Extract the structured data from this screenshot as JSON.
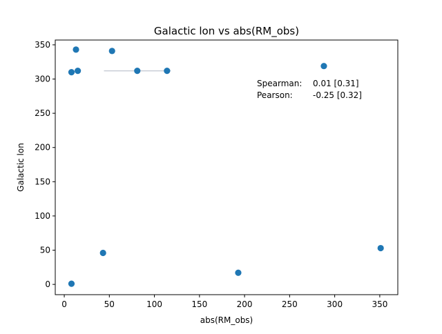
{
  "chart_data": {
    "type": "scatter",
    "title": "Galactic lon vs abs(RM_obs)",
    "xlabel": "abs(RM_obs)",
    "ylabel": "Galactic lon",
    "xlim": [
      -10,
      370
    ],
    "ylim": [
      -15,
      357
    ],
    "xticks": [
      0,
      50,
      100,
      150,
      200,
      250,
      300,
      350
    ],
    "yticks": [
      0,
      50,
      100,
      150,
      200,
      250,
      300,
      350
    ],
    "grid": false,
    "marker_color": "#1f77b4",
    "errorbar_color": "#c8cdd6",
    "points": [
      {
        "x": 8,
        "y": 1
      },
      {
        "x": 8,
        "y": 310
      },
      {
        "x": 13,
        "y": 343
      },
      {
        "x": 15,
        "y": 312
      },
      {
        "x": 43,
        "y": 46
      },
      {
        "x": 53,
        "y": 341
      },
      {
        "x": 81,
        "y": 312
      },
      {
        "x": 114,
        "y": 312
      },
      {
        "x": 193,
        "y": 17
      },
      {
        "x": 288,
        "y": 319
      },
      {
        "x": 351,
        "y": 53
      }
    ],
    "errorbars": [
      {
        "y": 312,
        "x_from": 44,
        "x_to": 118
      }
    ],
    "annotations": [
      {
        "label": "Spearman:",
        "value": "0.01 [0.31]"
      },
      {
        "label": "Pearson:",
        "value": "-0.25 [0.32]"
      }
    ]
  }
}
